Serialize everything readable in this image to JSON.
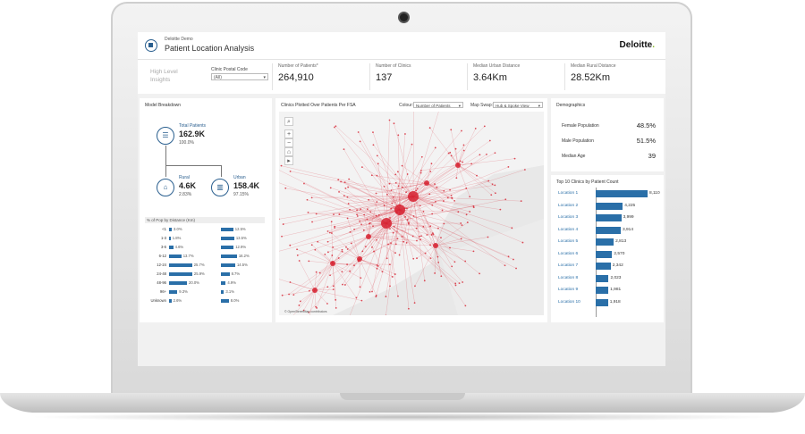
{
  "header": {
    "subtitle": "Deloitte Demo",
    "title": "Patient Location Analysis",
    "brand": "Deloitte",
    "brand_dot": "."
  },
  "kpis": {
    "high_level": "High Level Insights",
    "filter_label": "Clinic Postal Code",
    "filter_value": "(All)",
    "items": [
      {
        "label": "Number of Patients*",
        "value": "264,910"
      },
      {
        "label": "Number of Clinics",
        "value": "137"
      },
      {
        "label": "Median Urban Distance",
        "value": "3.64Km"
      },
      {
        "label": "Median Rural Distance",
        "value": "28.52Km"
      }
    ]
  },
  "model": {
    "title": "Model Breakdown",
    "total": {
      "label": "Total Patients",
      "value": "162.9K",
      "pct": "100.0%"
    },
    "rural": {
      "label": "Rural",
      "value": "4.6K",
      "pct": "2.83%"
    },
    "urban": {
      "label": "Urban",
      "value": "158.4K",
      "pct": "97.15%"
    },
    "dist_header": "% of Pop by Distance (Km)",
    "dist": [
      {
        "label": "<1",
        "rural": 3.0,
        "rural_txt": "3.0%",
        "urban": 12.5,
        "urban_txt": "12.5%"
      },
      {
        "label": "1-3",
        "rural": 1.8,
        "rural_txt": "1.8%",
        "urban": 13.5,
        "urban_txt": "13.5%"
      },
      {
        "label": "3-6",
        "rural": 4.6,
        "rural_txt": "4.6%",
        "urban": 12.9,
        "urban_txt": "12.9%"
      },
      {
        "label": "6-12",
        "rural": 13.7,
        "rural_txt": "13.7%",
        "urban": 16.2,
        "urban_txt": "16.2%"
      },
      {
        "label": "12-24",
        "rural": 25.7,
        "rural_txt": "25.7%",
        "urban": 14.5,
        "urban_txt": "14.5%"
      },
      {
        "label": "24-48",
        "rural": 25.9,
        "rural_txt": "25.9%",
        "urban": 8.7,
        "urban_txt": "8.7%"
      },
      {
        "label": "48-96",
        "rural": 20.0,
        "rural_txt": "20.0%",
        "urban": 4.9,
        "urban_txt": "4.9%"
      },
      {
        "label": "96+",
        "rural": 9.3,
        "rural_txt": "9.3%",
        "urban": 3.1,
        "urban_txt": "3.1%"
      },
      {
        "label": "Unknown",
        "rural": 2.6,
        "rural_txt": "2.6%",
        "urban": 8.0,
        "urban_txt": "8.0%"
      }
    ]
  },
  "map": {
    "title": "Clinics Plotted Over Patients Per FSA",
    "colour_label": "Colour:",
    "colour_value": "Number of Patients",
    "swap_label": "Map Swap:",
    "swap_value": "Hub & Spoke View",
    "credit": "© OpenStreetMap contributors",
    "accent": "#d6202f"
  },
  "demographics": {
    "title": "Demographics",
    "rows": [
      {
        "label": "Female Population",
        "value": "48.5%"
      },
      {
        "label": "Male Population",
        "value": "51.5%"
      },
      {
        "label": "Median Age",
        "value": "39"
      }
    ]
  },
  "top10": {
    "title": "Top 10 Clinics by Patient Count",
    "rows": [
      {
        "label": "Location 1",
        "value": 8110,
        "text": "8,110"
      },
      {
        "label": "Location 2",
        "value": 4225,
        "text": "4,225"
      },
      {
        "label": "Location 3",
        "value": 3999,
        "text": "3,999"
      },
      {
        "label": "Location 4",
        "value": 3914,
        "text": "3,914"
      },
      {
        "label": "Location 5",
        "value": 2813,
        "text": "2,813"
      },
      {
        "label": "Location 6",
        "value": 2570,
        "text": "2,570"
      },
      {
        "label": "Location 7",
        "value": 2342,
        "text": "2,342"
      },
      {
        "label": "Location 8",
        "value": 2023,
        "text": "2,023"
      },
      {
        "label": "Location 9",
        "value": 1981,
        "text": "1,981"
      },
      {
        "label": "Location 10",
        "value": 1918,
        "text": "1,918"
      }
    ]
  },
  "colors": {
    "accent_blue": "#2a6fa8",
    "brand_green": "#86bc25",
    "map_red": "#d6202f"
  }
}
